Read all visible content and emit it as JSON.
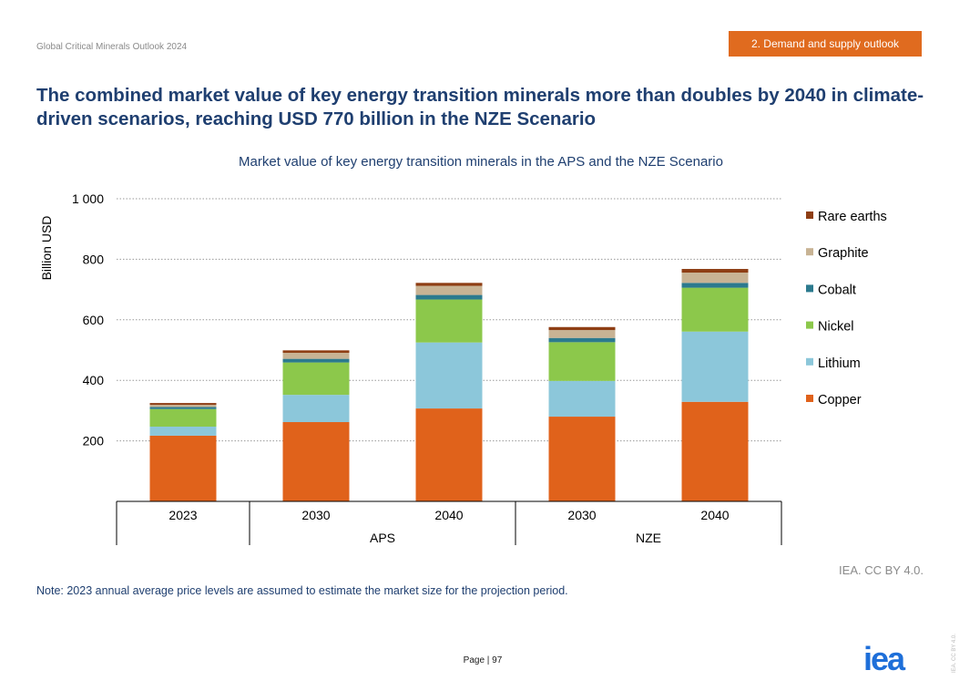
{
  "header": {
    "doc_name": "Global Critical Minerals Outlook 2024",
    "section_tag": "2. Demand and supply outlook",
    "headline": "The combined market value of key energy transition minerals more than doubles by 2040 in climate-driven scenarios, reaching USD 770 billion in the NZE Scenario"
  },
  "chart_data": {
    "type": "bar",
    "stacked": true,
    "title": "Market value of key energy transition minerals in the APS and the NZE Scenario",
    "ylabel": "Billion USD",
    "xlabel": "",
    "ylim": [
      0,
      1000
    ],
    "yticks": [
      200,
      400,
      600,
      800,
      1000
    ],
    "ytick_labels": [
      "200",
      "400",
      "600",
      "800",
      "1 000"
    ],
    "grid": true,
    "legend_position": "right",
    "categories": [
      "2023",
      "2030",
      "2040",
      "2030",
      "2040"
    ],
    "category_groups": [
      {
        "label": "",
        "categories": [
          0
        ]
      },
      {
        "label": "APS",
        "categories": [
          1,
          2
        ]
      },
      {
        "label": "NZE",
        "categories": [
          3,
          4
        ]
      }
    ],
    "series": [
      {
        "name": "Copper",
        "color": "#e0621b",
        "values": [
          217,
          262,
          307,
          280,
          329
        ]
      },
      {
        "name": "Lithium",
        "color": "#8cc7da",
        "values": [
          30,
          90,
          218,
          118,
          232
        ]
      },
      {
        "name": "Nickel",
        "color": "#8cc84b",
        "values": [
          58,
          107,
          142,
          128,
          145
        ]
      },
      {
        "name": "Cobalt",
        "color": "#2c7a8e",
        "values": [
          7,
          12,
          15,
          14,
          16
        ]
      },
      {
        "name": "Graphite",
        "color": "#c8b394",
        "values": [
          7,
          20,
          30,
          26,
          34
        ]
      },
      {
        "name": "Rare earths",
        "color": "#8e3e14",
        "values": [
          6,
          8,
          10,
          10,
          12
        ]
      }
    ],
    "axis_color": "#000000",
    "grid_color": "#9a9a9a"
  },
  "footer": {
    "source": "IEA. CC BY 4.0.",
    "note": "Note: 2023 annual average price levels are assumed to estimate the market size for the projection period.",
    "page_label": "Page | 97",
    "logo": "iea",
    "side_license": "IEA. CC BY 4.0."
  }
}
